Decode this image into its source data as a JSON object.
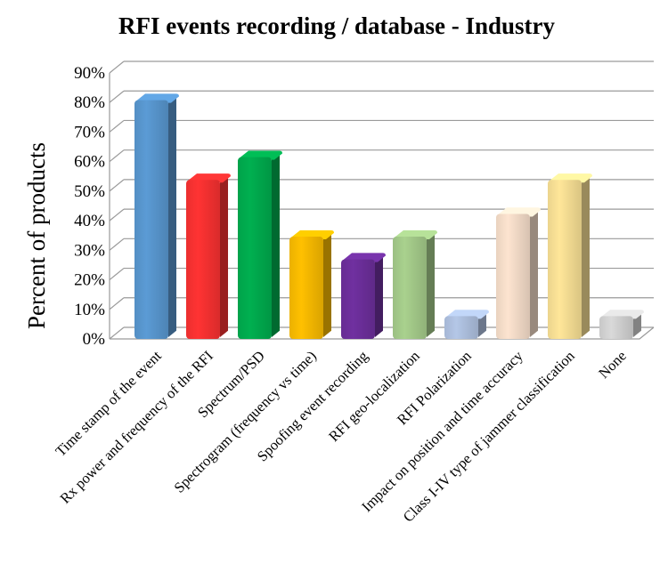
{
  "chart_data": {
    "type": "bar",
    "title": "RFI events recording / database - Industry",
    "xlabel": "",
    "ylabel": "Percent of products",
    "ylim": [
      0,
      90
    ],
    "yticks": [
      "0%",
      "10%",
      "20%",
      "30%",
      "40%",
      "50%",
      "60%",
      "70%",
      "80%",
      "90%"
    ],
    "grid": true,
    "style": "3d-cylinder-bars",
    "categories": [
      "Time stamp of the event",
      "Rx power and frequency of the RFI",
      "Spectrum/PSD",
      "Spectrogram (frequency vs time)",
      "Spoofing event recording",
      "RFI geo-localization",
      "RFI Polarization",
      "Impact on position and time accuracy",
      "Class I-IV type of jammer classification",
      "None"
    ],
    "values": [
      80.8,
      53.8,
      61.5,
      34.6,
      26.9,
      34.6,
      7.7,
      42.3,
      53.8,
      7.7
    ],
    "colors": [
      "#5b9bd5",
      "#ff3333",
      "#00b050",
      "#ffc000",
      "#7030a0",
      "#a9d18e",
      "#b4c7e7",
      "#fde4d0",
      "#ffe699",
      "#d9d9d9"
    ]
  }
}
